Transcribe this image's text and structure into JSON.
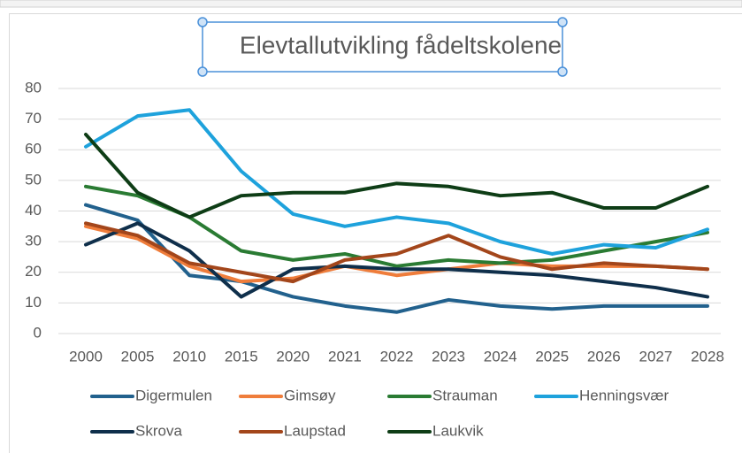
{
  "chart_data": {
    "type": "line",
    "title": "Elevtallutvikling fådeltskolene",
    "categories": [
      "2000",
      "2005",
      "2010",
      "2015",
      "2020",
      "2021",
      "2022",
      "2023",
      "2024",
      "2025",
      "2026",
      "2027",
      "2028"
    ],
    "series": [
      {
        "name": "Digermulen",
        "color": "#22618d",
        "values": [
          42,
          37,
          19,
          17,
          12,
          9,
          7,
          11,
          9,
          8,
          9,
          9,
          9
        ]
      },
      {
        "name": "Gimsøy",
        "color": "#ef7d3b",
        "values": [
          35,
          31,
          22,
          17,
          18,
          22,
          19,
          21,
          23,
          22,
          22,
          22,
          21
        ]
      },
      {
        "name": "Strauman",
        "color": "#2a7b33",
        "values": [
          48,
          45,
          38,
          27,
          24,
          26,
          22,
          24,
          23,
          24,
          27,
          30,
          33
        ]
      },
      {
        "name": "Henningsvær",
        "color": "#1ea2dc",
        "values": [
          61,
          71,
          73,
          53,
          39,
          35,
          38,
          36,
          30,
          26,
          29,
          28,
          34
        ]
      },
      {
        "name": "Skrova",
        "color": "#0f2f4b",
        "values": [
          29,
          36,
          27,
          12,
          21,
          22,
          21,
          21,
          20,
          19,
          17,
          15,
          12
        ]
      },
      {
        "name": "Laupstad",
        "color": "#a3461b",
        "values": [
          36,
          32,
          23,
          20,
          17,
          24,
          26,
          32,
          25,
          21,
          23,
          22,
          21
        ]
      },
      {
        "name": "Laukvik",
        "color": "#0e3d16",
        "values": [
          65,
          46,
          38,
          45,
          46,
          46,
          49,
          48,
          45,
          46,
          41,
          41,
          48
        ]
      }
    ],
    "ylim": [
      0,
      80
    ],
    "yticks": [
      0,
      10,
      20,
      30,
      40,
      50,
      60,
      70,
      80
    ],
    "grid": true,
    "legend": "bottom"
  }
}
